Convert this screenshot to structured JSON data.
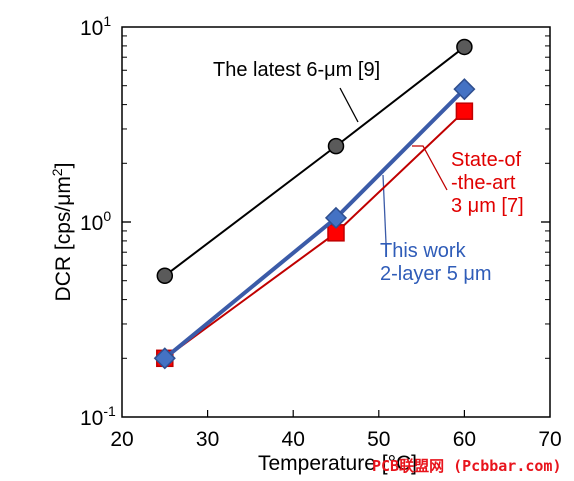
{
  "chart_data": {
    "type": "line",
    "xlabel": "Temperature [",
    "xlabel_unit_tail": "°C]",
    "ylabel": "DCR [cps/μm",
    "ylabel_sup": "2",
    "ylabel_close": "]",
    "y_scale": "log",
    "xlim": [
      20,
      70
    ],
    "ylim": [
      0.1,
      10
    ],
    "x_ticks": [
      "20",
      "30",
      "40",
      "50",
      "60",
      "70"
    ],
    "y_ticks": [
      {
        "base": "10",
        "exp": "-1"
      },
      {
        "base": "10",
        "exp": "0"
      },
      {
        "base": "10",
        "exp": "1"
      }
    ],
    "grid": false,
    "legend": "none",
    "series": [
      {
        "key": "latest",
        "color": "#000000",
        "marker": "circle",
        "marker_fill": "#5a5a5a",
        "x": [
          25,
          45,
          60
        ],
        "values": [
          0.53,
          2.45,
          7.9
        ]
      },
      {
        "key": "sota",
        "color": "#c00000",
        "marker": "square",
        "marker_fill": "#ff0000",
        "x": [
          25,
          45,
          60
        ],
        "values": [
          0.2,
          0.88,
          3.7
        ]
      },
      {
        "key": "this",
        "color": "#3b5ba8",
        "marker": "diamond",
        "marker_fill": "#4472c4",
        "x": [
          25,
          45,
          60
        ],
        "values": [
          0.2,
          1.05,
          4.8
        ]
      }
    ],
    "annotations": [
      {
        "series": "latest",
        "lines": [
          "The latest 6-μm [9]"
        ]
      },
      {
        "series": "sota",
        "lines": [
          "State-of",
          "-the-art",
          "3 μm [7]"
        ]
      },
      {
        "series": "this",
        "lines": [
          "This work",
          "2-layer 5 μm"
        ]
      }
    ]
  },
  "watermark": "PCB联盟网 (Pcbbar.com)"
}
